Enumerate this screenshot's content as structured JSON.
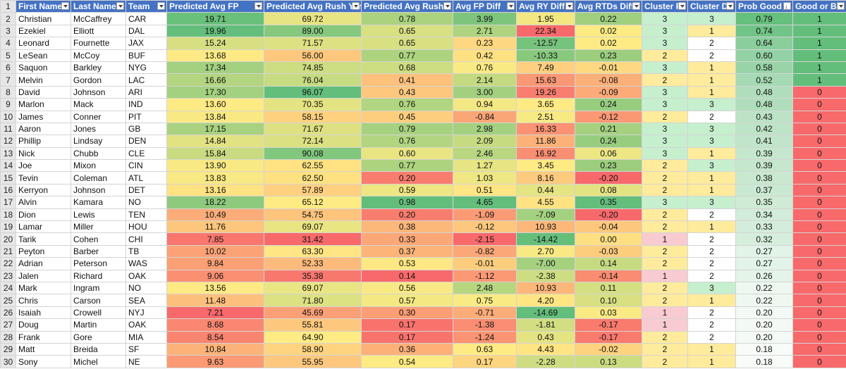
{
  "headers": [
    "First Name",
    "Last Name",
    "Team",
    "Predicted Avg FP",
    "Predicted Avg Rush Yards",
    "Predicted Avg Rush T",
    "Avg FP Diff",
    "Avg RY Diff",
    "Avg RTDs Diff",
    "Cluster Pr",
    "Cluster D",
    "Prob Good",
    "Good or Ba"
  ],
  "sorted_column": 11,
  "colors": {
    "green": "#63be7b",
    "yellow": "#ffeb84",
    "red": "#f8696b",
    "pink": "#f8cbd0",
    "lightgreen": "#c6efce",
    "lightyellow": "#ffeb9c",
    "header_blue": "#4472c4"
  },
  "rows": [
    [
      "Christian",
      "McCaffrey",
      "CAR",
      "19.71",
      "69.72",
      "0.78",
      "3.99",
      "1.95",
      "0.22",
      "3",
      "3",
      "0.79",
      "1"
    ],
    [
      "Ezekiel",
      "Elliott",
      "DAL",
      "19.96",
      "89.00",
      "0.65",
      "2.71",
      "22.34",
      "0.02",
      "3",
      "1",
      "0.74",
      "1"
    ],
    [
      "Leonard",
      "Fournette",
      "JAX",
      "15.24",
      "71.57",
      "0.65",
      "0.23",
      "-12.57",
      "0.02",
      "3",
      "2",
      "0.64",
      "1"
    ],
    [
      "LeSean",
      "McCoy",
      "BUF",
      "13.68",
      "56.00",
      "0.77",
      "0.42",
      "-10.33",
      "0.23",
      "2",
      "2",
      "0.60",
      "1"
    ],
    [
      "Saquon",
      "Barkley",
      "NYG",
      "17.34",
      "74.85",
      "0.68",
      "0.76",
      "7.49",
      "-0.01",
      "3",
      "1",
      "0.58",
      "1"
    ],
    [
      "Melvin",
      "Gordon",
      "LAC",
      "16.66",
      "76.04",
      "0.41",
      "2.14",
      "15.63",
      "-0.08",
      "2",
      "1",
      "0.52",
      "1"
    ],
    [
      "David",
      "Johnson",
      "ARI",
      "17.30",
      "96.07",
      "0.43",
      "3.00",
      "19.26",
      "-0.09",
      "3",
      "1",
      "0.48",
      "0"
    ],
    [
      "Marlon",
      "Mack",
      "IND",
      "13.60",
      "70.35",
      "0.76",
      "0.94",
      "3.65",
      "0.24",
      "3",
      "3",
      "0.48",
      "0"
    ],
    [
      "James",
      "Conner",
      "PIT",
      "13.84",
      "58.15",
      "0.45",
      "-0.84",
      "2.51",
      "-0.12",
      "2",
      "2",
      "0.43",
      "0"
    ],
    [
      "Aaron",
      "Jones",
      "GB",
      "17.15",
      "71.67",
      "0.79",
      "2.98",
      "16.33",
      "0.21",
      "3",
      "3",
      "0.42",
      "0"
    ],
    [
      "Phillip",
      "Lindsay",
      "DEN",
      "14.84",
      "72.14",
      "0.76",
      "2.09",
      "11.86",
      "0.24",
      "3",
      "3",
      "0.41",
      "0"
    ],
    [
      "Nick",
      "Chubb",
      "CLE",
      "15.84",
      "90.08",
      "0.60",
      "2.46",
      "16.92",
      "0.06",
      "3",
      "1",
      "0.39",
      "0"
    ],
    [
      "Joe",
      "Mixon",
      "CIN",
      "13.90",
      "62.55",
      "0.77",
      "1.27",
      "3.45",
      "0.23",
      "2",
      "3",
      "0.39",
      "0"
    ],
    [
      "Tevin",
      "Coleman",
      "ATL",
      "13.83",
      "62.50",
      "0.20",
      "1.03",
      "8.16",
      "-0.20",
      "2",
      "1",
      "0.38",
      "0"
    ],
    [
      "Kerryon",
      "Johnson",
      "DET",
      "13.16",
      "57.89",
      "0.59",
      "0.51",
      "0.44",
      "0.08",
      "2",
      "1",
      "0.37",
      "0"
    ],
    [
      "Alvin",
      "Kamara",
      "NO",
      "18.22",
      "65.12",
      "0.98",
      "4.65",
      "4.55",
      "0.35",
      "3",
      "3",
      "0.35",
      "0"
    ],
    [
      "Dion",
      "Lewis",
      "TEN",
      "10.49",
      "54.75",
      "0.20",
      "-1.09",
      "-7.09",
      "-0.20",
      "2",
      "2",
      "0.34",
      "0"
    ],
    [
      "Lamar",
      "Miller",
      "HOU",
      "11.76",
      "69.07",
      "0.38",
      "-0.12",
      "10.93",
      "-0.04",
      "2",
      "1",
      "0.33",
      "0"
    ],
    [
      "Tarik",
      "Cohen",
      "CHI",
      "7.85",
      "31.42",
      "0.33",
      "-2.15",
      "-14.42",
      "0.00",
      "1",
      "2",
      "0.32",
      "0"
    ],
    [
      "Peyton",
      "Barber",
      "TB",
      "10.02",
      "63.30",
      "0.37",
      "-0.82",
      "2.70",
      "-0.03",
      "2",
      "2",
      "0.27",
      "0"
    ],
    [
      "Adrian",
      "Peterson",
      "WAS",
      "9.84",
      "52.33",
      "0.53",
      "-0.01",
      "-7.00",
      "0.14",
      "2",
      "2",
      "0.27",
      "0"
    ],
    [
      "Jalen",
      "Richard",
      "OAK",
      "9.06",
      "35.38",
      "0.14",
      "-1.12",
      "-2.38",
      "-0.14",
      "1",
      "2",
      "0.26",
      "0"
    ],
    [
      "Mark",
      "Ingram",
      "NO",
      "13.56",
      "69.07",
      "0.56",
      "2.48",
      "10.93",
      "0.11",
      "2",
      "3",
      "0.22",
      "0"
    ],
    [
      "Chris",
      "Carson",
      "SEA",
      "11.48",
      "71.80",
      "0.57",
      "0.75",
      "4.20",
      "0.10",
      "2",
      "1",
      "0.22",
      "0"
    ],
    [
      "Isaiah",
      "Crowell",
      "NYJ",
      "7.21",
      "45.69",
      "0.30",
      "-0.71",
      "-14.69",
      "0.03",
      "1",
      "2",
      "0.20",
      "0"
    ],
    [
      "Doug",
      "Martin",
      "OAK",
      "8.68",
      "55.81",
      "0.17",
      "-1.38",
      "-1.81",
      "-0.17",
      "1",
      "2",
      "0.20",
      "0"
    ],
    [
      "Frank",
      "Gore",
      "MIA",
      "8.54",
      "64.90",
      "0.17",
      "-1.24",
      "0.43",
      "-0.17",
      "2",
      "2",
      "0.20",
      "0"
    ],
    [
      "Matt",
      "Breida",
      "SF",
      "10.84",
      "58.90",
      "0.36",
      "0.63",
      "4.43",
      "-0.02",
      "2",
      "1",
      "0.18",
      "0"
    ],
    [
      "Sony",
      "Michel",
      "NE",
      "9.63",
      "55.95",
      "0.54",
      "0.17",
      "-2.28",
      "0.13",
      "2",
      "1",
      "0.18",
      "0"
    ]
  ],
  "row_numbers": [
    "1",
    "2",
    "3",
    "4",
    "5",
    "6",
    "7",
    "8",
    "9",
    "10",
    "11",
    "12",
    "13",
    "14",
    "15",
    "16",
    "17",
    "18",
    "19",
    "20",
    "21",
    "22",
    "23",
    "24",
    "25",
    "26",
    "27",
    "28",
    "29",
    "30"
  ]
}
